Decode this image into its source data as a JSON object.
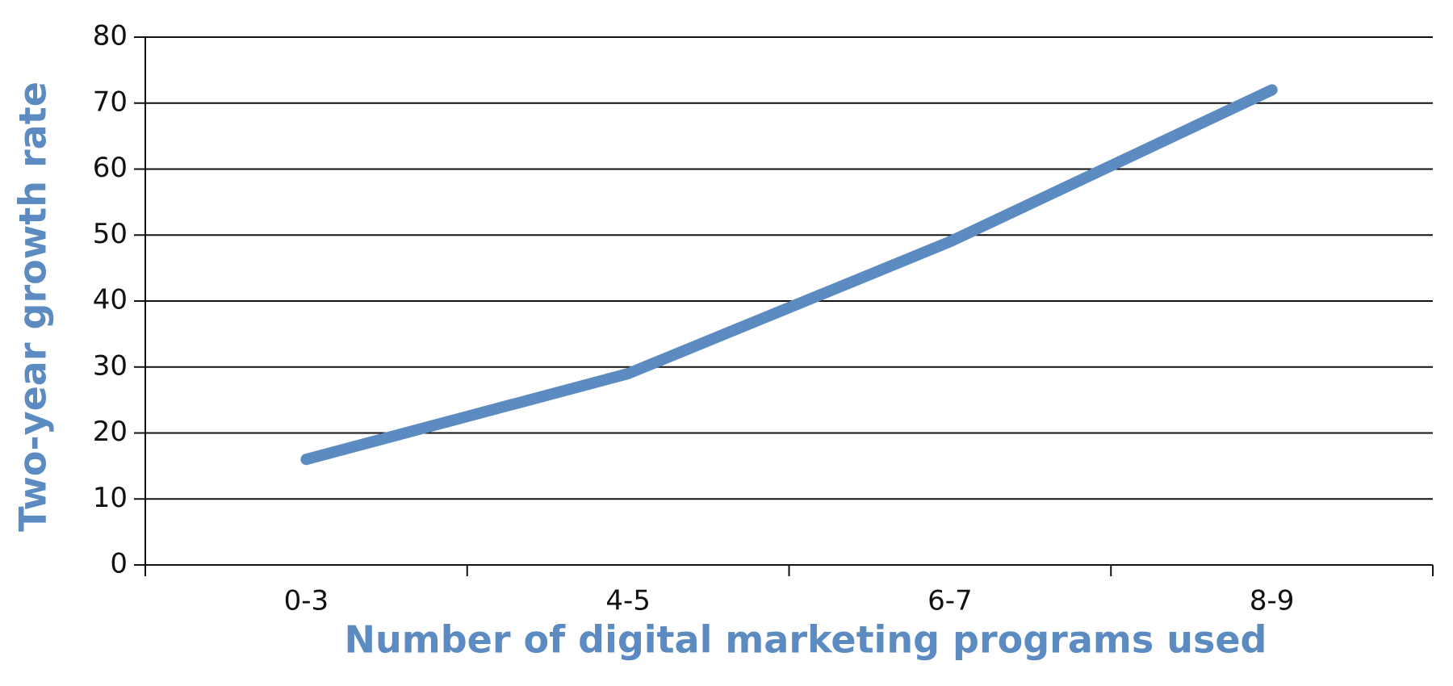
{
  "chart_data": {
    "type": "line",
    "x_label": "Number of digital marketing programs used",
    "y_label": "Two-year growth rate",
    "categories": [
      "0-3",
      "4-5",
      "6-7",
      "8-9"
    ],
    "series": [
      {
        "name": "Two-year growth rate",
        "color": "#5b8bc0",
        "values": [
          16,
          29,
          49,
          72
        ]
      }
    ],
    "ylim": [
      0,
      80
    ],
    "yticks": [
      0,
      10,
      20,
      30,
      40,
      50,
      60,
      70,
      80
    ],
    "grid": true
  }
}
